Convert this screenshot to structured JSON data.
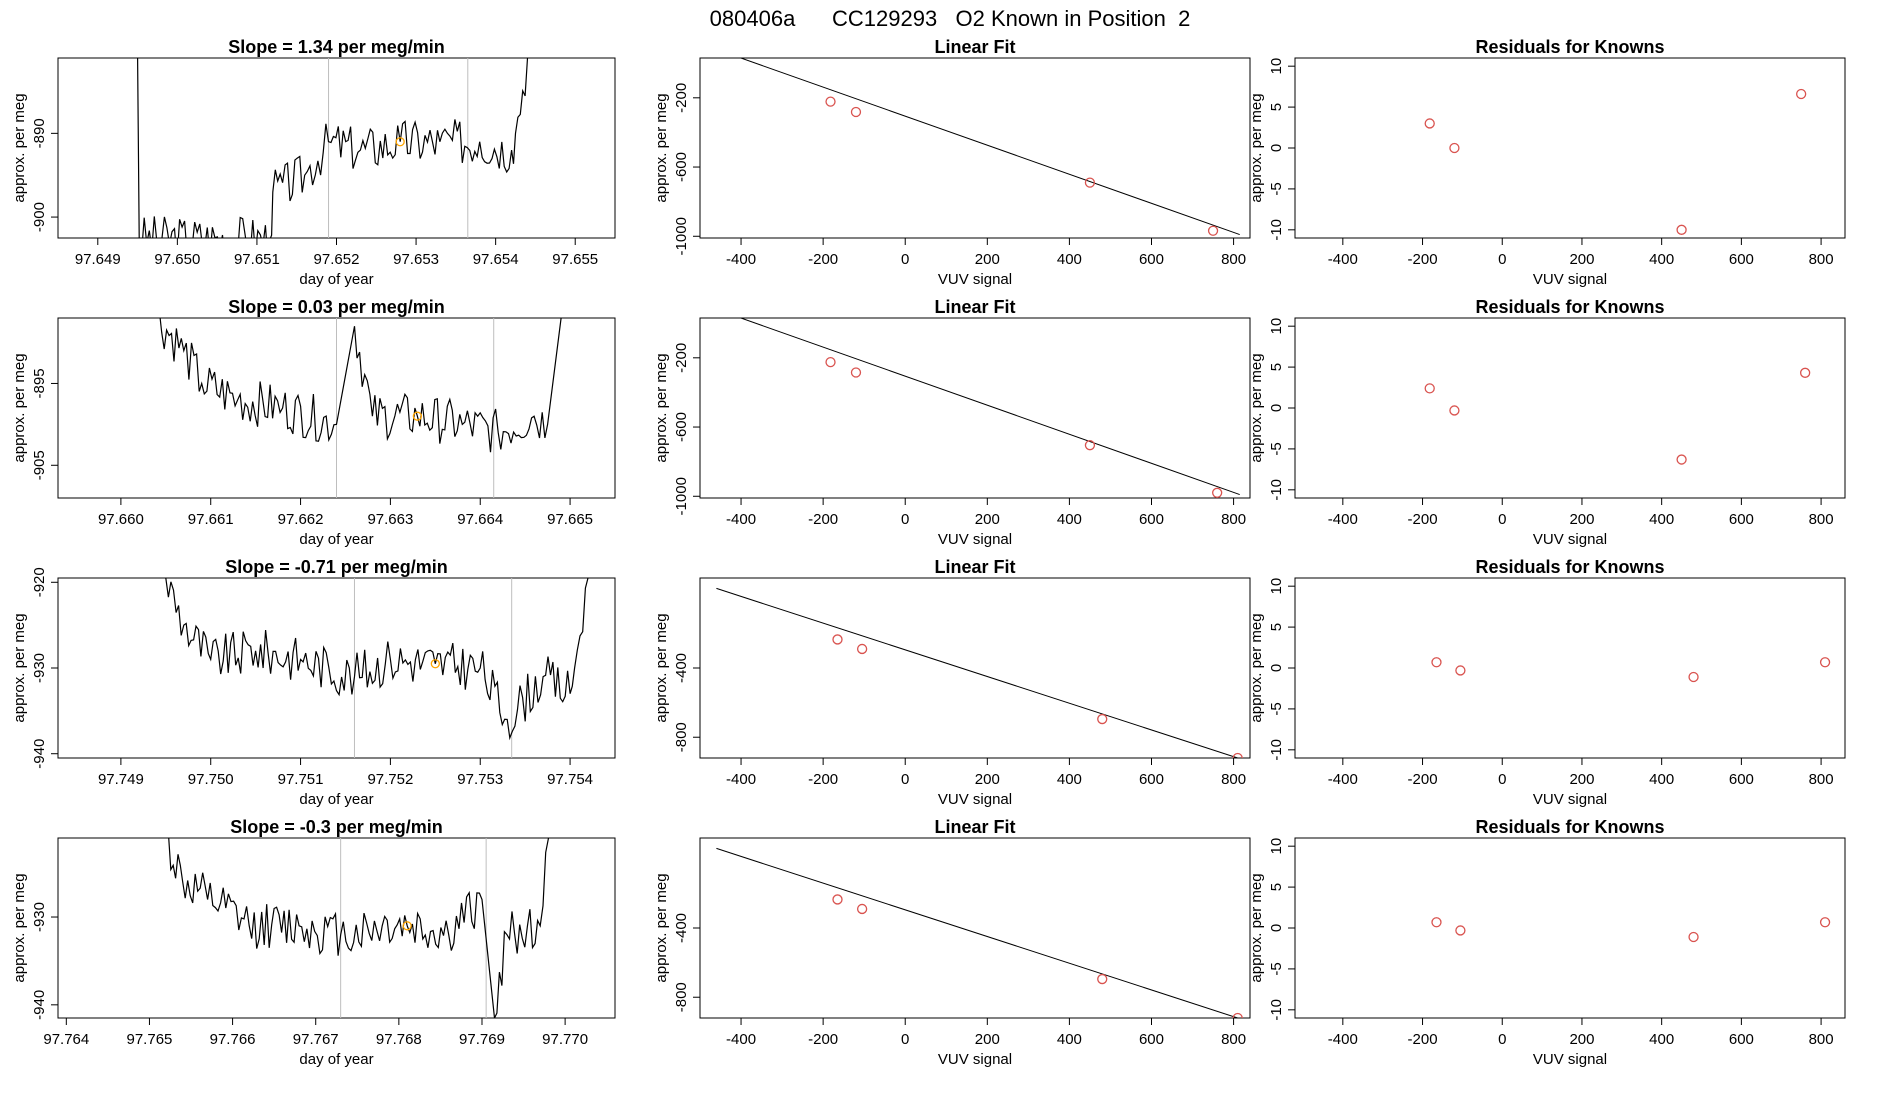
{
  "figure_title": "080406a      CC129293   O2 Known in Position  2",
  "colors": {
    "trace": "#000000",
    "vline": "#bebebe",
    "highlight": "#ffa500",
    "points": "#d9534f",
    "fitline": "#000000"
  },
  "chart_data": [
    {
      "type": "line",
      "panel": "row1-trace",
      "title": "Slope =  1.34  per meg/min",
      "xlabel": "day of year",
      "ylabel": "approx. per meg",
      "xticks": [
        "97.649",
        "97.650",
        "97.651",
        "97.652",
        "97.653",
        "97.654",
        "97.655"
      ],
      "yticks": [
        "-900",
        "-890"
      ],
      "xlim": [
        97.6485,
        97.6555
      ],
      "ylim": [
        -902.5,
        -881
      ],
      "vlines": [
        97.6519,
        97.65365
      ],
      "highlight": {
        "x": 97.6528,
        "y": -891
      },
      "anchors": [
        [
          97.6495,
          -881
        ],
        [
          97.64952,
          -902.5
        ],
        [
          97.65117,
          -902.5
        ],
        [
          97.6512,
          -897
        ],
        [
          97.6516,
          -895
        ],
        [
          97.6519,
          -891
        ],
        [
          97.6523,
          -892
        ],
        [
          97.6528,
          -891
        ],
        [
          97.6533,
          -891
        ],
        [
          97.6538,
          -891
        ],
        [
          97.6542,
          -892
        ],
        [
          97.65425,
          -890
        ],
        [
          97.6544,
          -881
        ]
      ]
    },
    {
      "type": "scatter",
      "panel": "row1-fit",
      "title": "Linear Fit",
      "xlabel": "VUV signal",
      "ylabel": "approx. per meg",
      "xticks": [
        "-400",
        "-200",
        "0",
        "200",
        "400",
        "600",
        "800"
      ],
      "yticks": [
        "-1000",
        "-600",
        "-200"
      ],
      "xlim": [
        -500,
        840
      ],
      "ylim": [
        -1010,
        30
      ],
      "x": [
        -182,
        -120,
        450,
        750
      ],
      "y": [
        -222,
        -282,
        -690,
        -968
      ],
      "fit": {
        "x": [
          -460,
          815
        ],
        "y": [
          80,
          -990
        ]
      }
    },
    {
      "type": "scatter",
      "panel": "row1-resid",
      "title": "Residuals for Knowns",
      "xlabel": "VUV signal",
      "ylabel": "approx. per meg",
      "xticks": [
        "-400",
        "-200",
        "0",
        "200",
        "400",
        "600",
        "800"
      ],
      "yticks": [
        "-10",
        "-5",
        "0",
        "5",
        "10"
      ],
      "xlim": [
        -520,
        860
      ],
      "ylim": [
        -11,
        11
      ],
      "x": [
        -182,
        -120,
        450,
        750
      ],
      "y": [
        3,
        0,
        -10,
        6.6
      ]
    },
    {
      "type": "line",
      "panel": "row2-trace",
      "title": "Slope =  0.03  per meg/min",
      "xlabel": "day of year",
      "ylabel": "approx. per meg",
      "xticks": [
        "97.660",
        "97.661",
        "97.662",
        "97.663",
        "97.664",
        "97.665"
      ],
      "yticks": [
        "-905",
        "-895"
      ],
      "xlim": [
        97.6593,
        97.6655
      ],
      "ylim": [
        -909,
        -887
      ],
      "vlines": [
        97.6624,
        97.66415
      ],
      "highlight": {
        "x": 97.6633,
        "y": -899
      },
      "anchors": [
        [
          97.6604,
          -887
        ],
        [
          97.6607,
          -891
        ],
        [
          97.6609,
          -895
        ],
        [
          97.6613,
          -897
        ],
        [
          97.6618,
          -898
        ],
        [
          97.6624,
          -900
        ],
        [
          97.6626,
          -888
        ],
        [
          97.6628,
          -899
        ],
        [
          97.6633,
          -899
        ],
        [
          97.6638,
          -900
        ],
        [
          97.6642,
          -901
        ],
        [
          97.6646,
          -899
        ],
        [
          97.66475,
          -900
        ],
        [
          97.6649,
          -887
        ]
      ]
    },
    {
      "type": "scatter",
      "panel": "row2-fit",
      "title": "Linear Fit",
      "xlabel": "VUV signal",
      "ylabel": "approx. per meg",
      "xticks": [
        "-400",
        "-200",
        "0",
        "200",
        "400",
        "600",
        "800"
      ],
      "yticks": [
        "-1000",
        "-600",
        "-200"
      ],
      "xlim": [
        -500,
        840
      ],
      "ylim": [
        -1010,
        30
      ],
      "x": [
        -182,
        -120,
        450,
        760
      ],
      "y": [
        -225,
        -285,
        -705,
        -980
      ],
      "fit": {
        "x": [
          -460,
          815
        ],
        "y": [
          80,
          -990
        ]
      }
    },
    {
      "type": "scatter",
      "panel": "row2-resid",
      "title": "Residuals for Knowns",
      "xlabel": "VUV signal",
      "ylabel": "approx. per meg",
      "xticks": [
        "-400",
        "-200",
        "0",
        "200",
        "400",
        "600",
        "800"
      ],
      "yticks": [
        "-10",
        "-5",
        "0",
        "5",
        "10"
      ],
      "xlim": [
        -520,
        860
      ],
      "ylim": [
        -11,
        11
      ],
      "x": [
        -182,
        -120,
        450,
        760
      ],
      "y": [
        2.4,
        -0.3,
        -6.3,
        4.3
      ]
    },
    {
      "type": "line",
      "panel": "row3-trace",
      "title": "Slope =  -0.71  per meg/min",
      "xlabel": "day of year",
      "ylabel": "approx. per meg",
      "xticks": [
        "97.749",
        "97.750",
        "97.751",
        "97.752",
        "97.753",
        "97.754"
      ],
      "yticks": [
        "-940",
        "-930",
        "-920"
      ],
      "xlim": [
        97.7483,
        97.7545
      ],
      "ylim": [
        -940.5,
        -919.5
      ],
      "vlines": [
        97.7516,
        97.75335
      ],
      "highlight": {
        "x": 97.7525,
        "y": -929.5
      },
      "anchors": [
        [
          97.7495,
          -919.5
        ],
        [
          97.7497,
          -925
        ],
        [
          97.75,
          -929
        ],
        [
          97.7505,
          -928
        ],
        [
          97.751,
          -929
        ],
        [
          97.7516,
          -931
        ],
        [
          97.752,
          -929
        ],
        [
          97.7525,
          -929.5
        ],
        [
          97.753,
          -930
        ],
        [
          97.7533,
          -936
        ],
        [
          97.7537,
          -931
        ],
        [
          97.754,
          -933
        ],
        [
          97.75405,
          -930
        ],
        [
          97.7542,
          -919.5
        ]
      ]
    },
    {
      "type": "scatter",
      "panel": "row3-fit",
      "title": "Linear Fit",
      "xlabel": "VUV signal",
      "ylabel": "approx. per meg",
      "xticks": [
        "-400",
        "-200",
        "0",
        "200",
        "400",
        "600",
        "800"
      ],
      "yticks": [
        "-800",
        "-400"
      ],
      "xlim": [
        -500,
        840
      ],
      "ylim": [
        -920,
        120
      ],
      "x": [
        -165,
        -105,
        480,
        810
      ],
      "y": [
        -235,
        -290,
        -695,
        -920
      ],
      "fit": {
        "x": [
          -460,
          810
        ],
        "y": [
          60,
          -920
        ]
      }
    },
    {
      "type": "scatter",
      "panel": "row3-resid",
      "title": "Residuals for Knowns",
      "xlabel": "VUV signal",
      "ylabel": "approx. per meg",
      "xticks": [
        "-400",
        "-200",
        "0",
        "200",
        "400",
        "600",
        "800"
      ],
      "yticks": [
        "-10",
        "-5",
        "0",
        "5",
        "10"
      ],
      "xlim": [
        -520,
        860
      ],
      "ylim": [
        -11,
        11
      ],
      "x": [
        -165,
        -105,
        480,
        810
      ],
      "y": [
        0.7,
        -0.3,
        -1.1,
        0.7
      ]
    },
    {
      "type": "line",
      "panel": "row4-trace",
      "title": "Slope =  -0.3  per meg/min",
      "xlabel": "day of year",
      "ylabel": "approx. per meg",
      "xticks": [
        "97.764",
        "97.765",
        "97.766",
        "97.767",
        "97.768",
        "97.769",
        "97.770"
      ],
      "yticks": [
        "-940",
        "-930"
      ],
      "xlim": [
        97.7639,
        97.7706
      ],
      "ylim": [
        -941.5,
        -921
      ],
      "vlines": [
        97.7673,
        97.76905
      ],
      "highlight": {
        "x": 97.7681,
        "y": -931
      },
      "anchors": [
        [
          97.7652,
          -921
        ],
        [
          97.7654,
          -926
        ],
        [
          97.7657,
          -928
        ],
        [
          97.7662,
          -931
        ],
        [
          97.7668,
          -931
        ],
        [
          97.7673,
          -932
        ],
        [
          97.7678,
          -931
        ],
        [
          97.7681,
          -931
        ],
        [
          97.7686,
          -932
        ],
        [
          97.769,
          -928
        ],
        [
          97.76915,
          -941.5
        ],
        [
          97.7693,
          -932
        ],
        [
          97.7697,
          -931
        ],
        [
          97.7698,
          -921
        ]
      ]
    },
    {
      "type": "scatter",
      "panel": "row4-fit",
      "title": "Linear Fit",
      "xlabel": "VUV signal",
      "ylabel": "approx. per meg",
      "xticks": [
        "-400",
        "-200",
        "0",
        "200",
        "400",
        "600",
        "800"
      ],
      "yticks": [
        "-800",
        "-400"
      ],
      "xlim": [
        -500,
        840
      ],
      "ylim": [
        -920,
        120
      ],
      "x": [
        -165,
        -105,
        480,
        810
      ],
      "y": [
        -235,
        -290,
        -695,
        -920
      ],
      "fit": {
        "x": [
          -460,
          810
        ],
        "y": [
          60,
          -920
        ]
      }
    },
    {
      "type": "scatter",
      "panel": "row4-resid",
      "title": "Residuals for Knowns",
      "xlabel": "VUV signal",
      "ylabel": "approx. per meg",
      "xticks": [
        "-400",
        "-200",
        "0",
        "200",
        "400",
        "600",
        "800"
      ],
      "yticks": [
        "-10",
        "-5",
        "0",
        "5",
        "10"
      ],
      "xlim": [
        -520,
        860
      ],
      "ylim": [
        -11,
        11
      ],
      "x": [
        -165,
        -105,
        480,
        810
      ],
      "y": [
        0.7,
        -0.3,
        -1.1,
        0.7
      ]
    }
  ]
}
